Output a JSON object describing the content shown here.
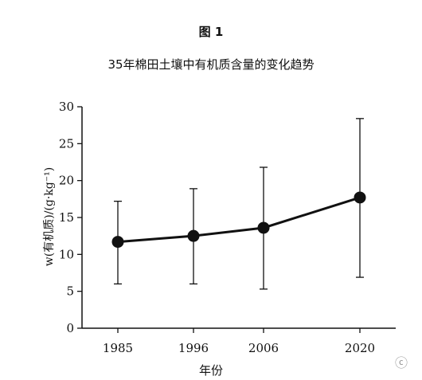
{
  "figure_label": "图 1",
  "watermark_icon": "wechat-watermark-icon",
  "chart_data": {
    "type": "line",
    "title": "35年棉田土壤中有机质含量的变化趋势",
    "xlabel": "年份",
    "ylabel": "w(有机质)/(g·kg⁻¹)",
    "categories": [
      "1985",
      "1996",
      "2006",
      "2020"
    ],
    "series": [
      {
        "values": [
          11.7,
          12.5,
          13.6,
          17.7
        ],
        "error_low": [
          6.0,
          6.0,
          5.3,
          6.9
        ],
        "error_high": [
          17.2,
          18.9,
          21.8,
          28.4
        ]
      }
    ],
    "ylim": [
      0,
      30
    ],
    "yticks": [
      0,
      5,
      10,
      15,
      20,
      25,
      30
    ],
    "grid": false,
    "legend": "none"
  }
}
